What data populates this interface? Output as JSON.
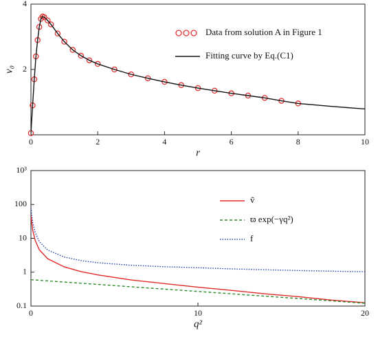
{
  "chart_data": [
    {
      "type": "line",
      "xlabel": "r",
      "ylabel": "v₀",
      "xlim": [
        0,
        10
      ],
      "ylim": [
        0,
        4
      ],
      "xticks": [
        0,
        2,
        4,
        6,
        8,
        10
      ],
      "yticks": [
        2,
        4
      ],
      "legend": "upper right",
      "series": [
        {
          "name": "Data from solution A in Figure 1",
          "color": "#e03030",
          "marker": "circle",
          "x": [
            0,
            0.05,
            0.1,
            0.15,
            0.2,
            0.25,
            0.3,
            0.35,
            0.4,
            0.5,
            0.6,
            0.8,
            1.0,
            1.25,
            1.5,
            1.75,
            2,
            2.5,
            3,
            3.5,
            4,
            4.5,
            5,
            5.5,
            6,
            6.5,
            7,
            7.5,
            8
          ],
          "values": [
            0.05,
            0.9,
            1.7,
            2.4,
            2.9,
            3.3,
            3.55,
            3.62,
            3.6,
            3.5,
            3.38,
            3.1,
            2.85,
            2.6,
            2.42,
            2.28,
            2.17,
            2.0,
            1.85,
            1.73,
            1.62,
            1.52,
            1.43,
            1.35,
            1.27,
            1.2,
            1.13,
            1.04,
            0.96
          ]
        },
        {
          "name": "Fitting curve by Eq.(C1)",
          "color": "#111111",
          "line": "solid",
          "x": [
            0,
            0.05,
            0.1,
            0.15,
            0.2,
            0.25,
            0.3,
            0.35,
            0.4,
            0.5,
            0.6,
            0.8,
            1.0,
            1.25,
            1.5,
            1.75,
            2,
            2.5,
            3,
            3.5,
            4,
            4.5,
            5,
            5.5,
            6,
            6.5,
            7,
            7.5,
            8,
            9,
            10
          ],
          "values": [
            0.05,
            0.9,
            1.7,
            2.4,
            2.9,
            3.3,
            3.55,
            3.62,
            3.6,
            3.5,
            3.38,
            3.1,
            2.85,
            2.6,
            2.42,
            2.28,
            2.17,
            2.0,
            1.85,
            1.73,
            1.62,
            1.52,
            1.43,
            1.35,
            1.27,
            1.2,
            1.13,
            1.04,
            0.96,
            0.87,
            0.79
          ]
        }
      ]
    },
    {
      "type": "line",
      "xlabel": "q²",
      "xlim": [
        0,
        20
      ],
      "ylim": [
        0.1,
        1000
      ],
      "yscale": "log",
      "xticks": [
        0,
        10,
        20
      ],
      "yticks": [
        0.1,
        1,
        10,
        100,
        {
          "value": 1000,
          "label": "10³"
        }
      ],
      "legend": "upper right",
      "series": [
        {
          "name": "ṽ",
          "color": "#e02828",
          "line": "solid",
          "x": [
            0,
            0.1,
            0.25,
            0.5,
            1,
            2,
            3,
            4,
            6,
            8,
            10,
            12,
            14,
            16,
            18,
            20
          ],
          "values": [
            48,
            17.9,
            8.8,
            4.6,
            2.5,
            1.43,
            1.04,
            0.83,
            0.59,
            0.46,
            0.36,
            0.29,
            0.23,
            0.19,
            0.15,
            0.125
          ]
        },
        {
          "name": "ϖ exp(−γq²)",
          "color": "#2a8a2a",
          "line": "dashed",
          "x": [
            0,
            0.1,
            0.25,
            0.5,
            1,
            2,
            3,
            4,
            6,
            8,
            10,
            12,
            14,
            16,
            18,
            20
          ],
          "values": [
            0.6,
            0.595,
            0.588,
            0.576,
            0.554,
            0.511,
            0.472,
            0.436,
            0.371,
            0.316,
            0.27,
            0.23,
            0.196,
            0.167,
            0.142,
            0.121
          ]
        },
        {
          "name": "f",
          "color": "#2040b0",
          "line": "dotted",
          "x": [
            0,
            0.1,
            0.25,
            0.5,
            1,
            2,
            3,
            4,
            6,
            8,
            10,
            12,
            14,
            16,
            18,
            20
          ],
          "values": [
            80,
            30,
            15,
            8,
            4.5,
            2.8,
            2.2,
            1.9,
            1.6,
            1.45,
            1.35,
            1.25,
            1.18,
            1.12,
            1.07,
            1.03
          ]
        }
      ]
    }
  ]
}
